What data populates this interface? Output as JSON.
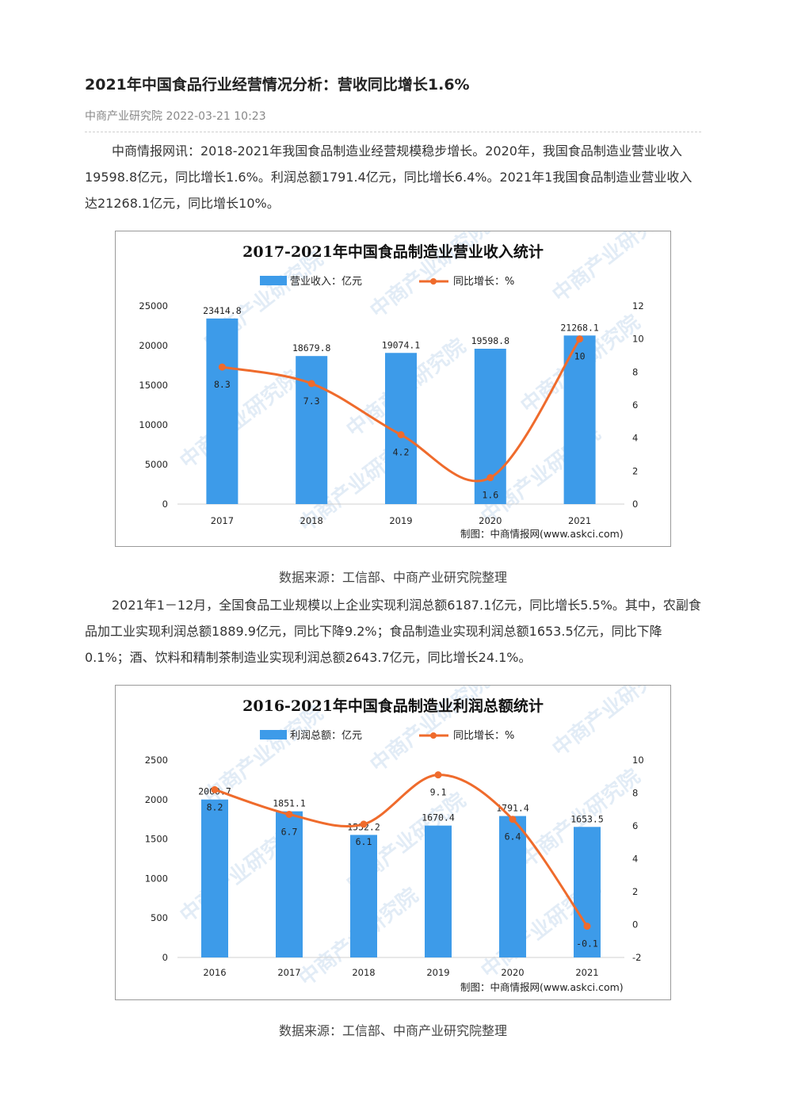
{
  "article": {
    "title": "2021年中国食品行业经营情况分析：营收同比增长1.6%",
    "meta": "中商产业研究院 2022-03-21 10:23",
    "para1": "中商情报网讯：2018-2021年我国食品制造业经营规模稳步增长。2020年，我国食品制造业营业收入19598.8亿元，同比增长1.6%。利润总额1791.4亿元，同比增长6.4%。2021年1我国食品制造业营业收入达21268.1亿元，同比增长10%。",
    "caption1": "数据来源：工信部、中商产业研究院整理",
    "para2": "2021年1－12月，全国食品工业规模以上企业实现利润总额6187.1亿元，同比增长5.5%。其中，农副食品加工业实现利润总额1889.9亿元，同比下降9.2%；食品制造业实现利润总额1653.5亿元，同比下降0.1%；酒、饮料和精制茶制造业实现利润总额2643.7亿元，同比增长24.1%。",
    "caption2": "数据来源：工信部、中商产业研究院整理"
  },
  "watermark": "中商产业研究院",
  "chart_data": [
    {
      "type": "bar",
      "title": "2017-2021年中国食品制造业营业收入统计",
      "categories": [
        "2017",
        "2018",
        "2019",
        "2020",
        "2021"
      ],
      "series": [
        {
          "name": "营业收入：亿元",
          "type": "bar",
          "axis": "left",
          "color": "#3d9be9",
          "values": [
            23414.8,
            18679.8,
            19074.1,
            19598.8,
            21268.1
          ],
          "labels": [
            "23414.8",
            "18679.8",
            "19074.1",
            "19598.8",
            "21268.1"
          ]
        },
        {
          "name": "同比增长：%",
          "type": "line",
          "axis": "right",
          "color": "#ef6b2c",
          "values": [
            8.3,
            7.3,
            4.2,
            1.6,
            10
          ],
          "labels": [
            "8.3",
            "7.3",
            "4.2",
            "1.6",
            "10"
          ]
        }
      ],
      "ylim_left": [
        0,
        25000
      ],
      "yticks_left": [
        "0",
        "5000",
        "10000",
        "15000",
        "20000",
        "25000"
      ],
      "ylim_right": [
        0,
        12
      ],
      "yticks_right": [
        "0",
        "2",
        "4",
        "6",
        "8",
        "10",
        "12"
      ],
      "grid": false,
      "legend": "top",
      "credit": "制图：中商情报网(www.askci.com)"
    },
    {
      "type": "bar",
      "title": "2016-2021年中国食品制造业利润总额统计",
      "categories": [
        "2016",
        "2017",
        "2018",
        "2019",
        "2020",
        "2021"
      ],
      "series": [
        {
          "name": "利润总额：亿元",
          "type": "bar",
          "axis": "left",
          "color": "#3d9be9",
          "values": [
            2000.7,
            1851.1,
            1552.2,
            1670.4,
            1791.4,
            1653.5
          ],
          "labels": [
            "2000.7",
            "1851.1",
            "1552.2",
            "1670.4",
            "1791.4",
            "1653.5"
          ]
        },
        {
          "name": "同比增长：%",
          "type": "line",
          "axis": "right",
          "color": "#ef6b2c",
          "values": [
            8.2,
            6.7,
            6.1,
            9.1,
            6.4,
            -0.1
          ],
          "labels": [
            "8.2",
            "6.7",
            "6.1",
            "9.1",
            "6.4",
            "-0.1"
          ]
        }
      ],
      "ylim_left": [
        0,
        2500
      ],
      "yticks_left": [
        "0",
        "500",
        "1000",
        "1500",
        "2000",
        "2500"
      ],
      "ylim_right": [
        -2,
        10
      ],
      "yticks_right": [
        "-2",
        "0",
        "2",
        "4",
        "6",
        "8",
        "10"
      ],
      "grid": false,
      "legend": "top",
      "credit": "制图：中商情报网(www.askci.com)"
    }
  ]
}
